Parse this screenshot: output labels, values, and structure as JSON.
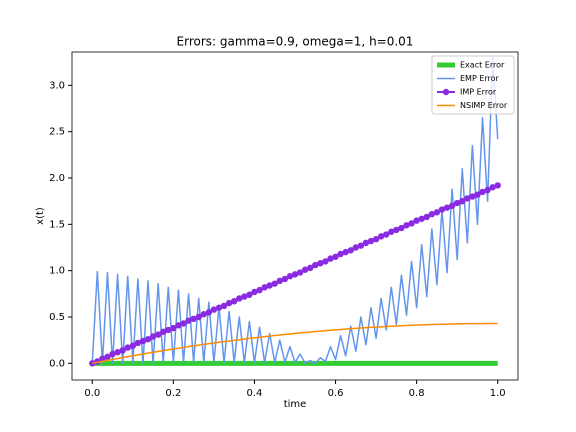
{
  "chart_data": {
    "type": "line",
    "title": "Errors: gamma=0.9, omega=1, h=0.01",
    "x_label": "time",
    "y_label": "x(t)",
    "x": [
      0,
      0.0125,
      0.025,
      0.0375,
      0.05,
      0.0625,
      0.075,
      0.0875,
      0.1,
      0.1125,
      0.125,
      0.1375,
      0.15,
      0.1625,
      0.175,
      0.1875,
      0.2,
      0.2125,
      0.225,
      0.2375,
      0.25,
      0.2625,
      0.275,
      0.2875,
      0.3,
      0.3125,
      0.325,
      0.3375,
      0.35,
      0.3625,
      0.375,
      0.3875,
      0.4,
      0.4125,
      0.425,
      0.4375,
      0.45,
      0.4625,
      0.475,
      0.4875,
      0.5,
      0.5125,
      0.525,
      0.5375,
      0.55,
      0.5625,
      0.575,
      0.5875,
      0.6,
      0.6125,
      0.625,
      0.6375,
      0.65,
      0.6625,
      0.675,
      0.6875,
      0.7,
      0.7125,
      0.725,
      0.7375,
      0.75,
      0.7625,
      0.775,
      0.7875,
      0.8,
      0.8125,
      0.825,
      0.8375,
      0.85,
      0.8625,
      0.875,
      0.8875,
      0.9,
      0.9125,
      0.925,
      0.9375,
      0.95,
      0.9625,
      0.975,
      0.9875,
      1
    ],
    "series": [
      {
        "name": "Exact Error",
        "color": "#32cd32",
        "linewidth": 5,
        "values": [
          0,
          0,
          0,
          0,
          0,
          0,
          0,
          0,
          0,
          0,
          0,
          0,
          0,
          0,
          0,
          0,
          0,
          0,
          0,
          0,
          0,
          0,
          0,
          0,
          0,
          0,
          0,
          0,
          0,
          0,
          0,
          0,
          0,
          0,
          0,
          0,
          0,
          0,
          0,
          0,
          0,
          0,
          0,
          0,
          0,
          0,
          0,
          0,
          0,
          0,
          0,
          0,
          0,
          0,
          0,
          0,
          0,
          0,
          0,
          0,
          0,
          0,
          0,
          0,
          0,
          0,
          0,
          0,
          0,
          0,
          0,
          0,
          0,
          0,
          0,
          0,
          0,
          0,
          0,
          0,
          0
        ]
      },
      {
        "name": "EMP Error",
        "color": "#6495ed",
        "linewidth": 1.5,
        "values": [
          0,
          0.99,
          0,
          0.98,
          0,
          0.96,
          0,
          0.94,
          0,
          0.91,
          0,
          0.89,
          0,
          0.86,
          0.01,
          0.82,
          0.01,
          0.79,
          0.01,
          0.75,
          0.01,
          0.7,
          0.01,
          0.66,
          0.01,
          0.61,
          0.01,
          0.56,
          0.01,
          0.5,
          0.01,
          0.45,
          0.01,
          0.39,
          0.01,
          0.32,
          0.01,
          0.25,
          0.01,
          0.18,
          0.01,
          0.1,
          0,
          0.03,
          0,
          0.06,
          0.02,
          0.18,
          0.04,
          0.3,
          0.08,
          0.4,
          0.13,
          0.5,
          0.2,
          0.6,
          0.27,
          0.7,
          0.36,
          0.82,
          0.42,
          0.95,
          0.52,
          1.1,
          0.6,
          1.28,
          0.72,
          1.45,
          0.85,
          1.65,
          0.98,
          1.88,
          1.12,
          2.1,
          1.3,
          2.35,
          1.5,
          2.65,
          1.75,
          3.3,
          2.42
        ]
      },
      {
        "name": "IMP Error",
        "color": "#8a2be2",
        "linewidth": 2,
        "marker": "o",
        "values": [
          0,
          0.02,
          0.05,
          0.07,
          0.1,
          0.12,
          0.14,
          0.17,
          0.19,
          0.22,
          0.24,
          0.26,
          0.29,
          0.31,
          0.34,
          0.36,
          0.38,
          0.41,
          0.43,
          0.46,
          0.48,
          0.5,
          0.53,
          0.55,
          0.58,
          0.6,
          0.62,
          0.65,
          0.67,
          0.7,
          0.72,
          0.74,
          0.77,
          0.79,
          0.82,
          0.84,
          0.86,
          0.89,
          0.91,
          0.94,
          0.96,
          0.98,
          1.01,
          1.03,
          1.06,
          1.08,
          1.1,
          1.13,
          1.15,
          1.18,
          1.2,
          1.22,
          1.25,
          1.27,
          1.3,
          1.32,
          1.34,
          1.37,
          1.39,
          1.42,
          1.44,
          1.46,
          1.49,
          1.51,
          1.54,
          1.56,
          1.58,
          1.61,
          1.63,
          1.66,
          1.68,
          1.7,
          1.73,
          1.75,
          1.78,
          1.8,
          1.82,
          1.85,
          1.87,
          1.9,
          1.92
        ]
      },
      {
        "name": "NSIMP Error",
        "color": "#ff8c00",
        "linewidth": 1.5,
        "values": [
          0,
          0.011,
          0.021,
          0.032,
          0.042,
          0.052,
          0.062,
          0.072,
          0.082,
          0.091,
          0.101,
          0.11,
          0.119,
          0.128,
          0.137,
          0.146,
          0.155,
          0.163,
          0.172,
          0.18,
          0.188,
          0.196,
          0.204,
          0.212,
          0.219,
          0.227,
          0.234,
          0.241,
          0.248,
          0.255,
          0.262,
          0.269,
          0.275,
          0.282,
          0.288,
          0.294,
          0.3,
          0.306,
          0.311,
          0.317,
          0.323,
          0.328,
          0.333,
          0.338,
          0.343,
          0.348,
          0.352,
          0.357,
          0.361,
          0.365,
          0.369,
          0.374,
          0.377,
          0.381,
          0.385,
          0.388,
          0.391,
          0.394,
          0.397,
          0.4,
          0.403,
          0.406,
          0.408,
          0.411,
          0.413,
          0.415,
          0.417,
          0.419,
          0.42,
          0.422,
          0.423,
          0.425,
          0.426,
          0.427,
          0.428,
          0.428,
          0.429,
          0.429,
          0.43,
          0.43,
          0.43
        ]
      }
    ],
    "xlim": [
      -0.05,
      1.05
    ],
    "ylim": [
      -0.18,
      3.36
    ],
    "xticks": [
      {
        "value": 0,
        "label": "0.0"
      },
      0.2,
      0.4,
      0.6,
      0.8,
      {
        "value": 1,
        "label": "1.0"
      }
    ],
    "yticks": [
      {
        "value": 0,
        "label": "0.0"
      },
      0.5,
      {
        "value": 1,
        "label": "1.0"
      },
      1.5,
      {
        "value": 2,
        "label": "2.0"
      },
      2.5,
      {
        "value": 3,
        "label": "3.0"
      }
    ],
    "grid": false,
    "legend": "upper right"
  }
}
